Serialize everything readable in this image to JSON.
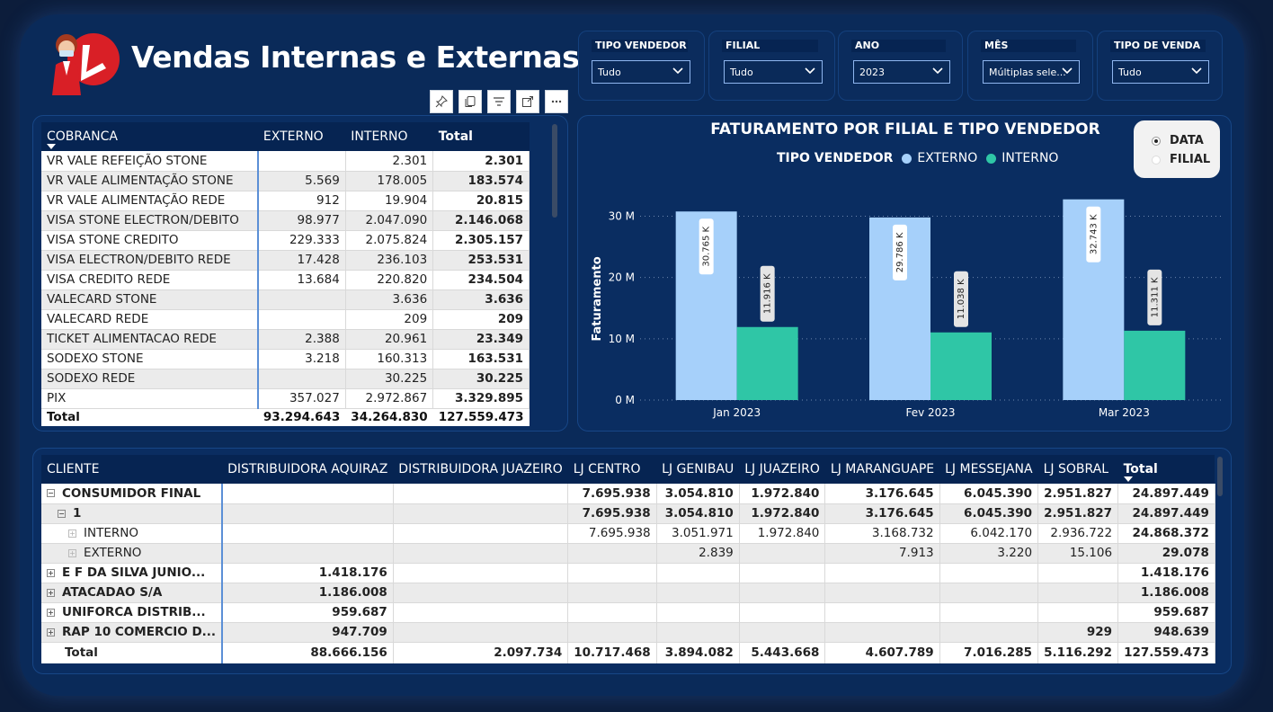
{
  "header": {
    "title": "Vendas Internas e Externas"
  },
  "filters": [
    {
      "label": "TIPO VENDEDOR",
      "value": "Tudo"
    },
    {
      "label": "FILIAL",
      "value": "Tudo"
    },
    {
      "label": "ANO",
      "value": "2023"
    },
    {
      "label": "MÊS",
      "value": "Múltiplas sele..."
    },
    {
      "label": "TIPO DE VENDA",
      "value": "Tudo"
    }
  ],
  "toolbar": {
    "icons": [
      "pin-icon",
      "copy-icon",
      "filter-icon",
      "focus-mode-icon",
      "more-options-icon"
    ]
  },
  "cobranca_table": {
    "headers": [
      "COBRANCA",
      "EXTERNO",
      "INTERNO",
      "Total"
    ],
    "rows": [
      [
        "VR VALE REFEIÇÃO STONE",
        "",
        "2.301",
        "2.301"
      ],
      [
        "VR VALE ALIMENTAÇÃO STONE",
        "5.569",
        "178.005",
        "183.574"
      ],
      [
        "VR VALE ALIMENTAÇÃO REDE",
        "912",
        "19.904",
        "20.815"
      ],
      [
        "VISA STONE ELECTRON/DEBITO",
        "98.977",
        "2.047.090",
        "2.146.068"
      ],
      [
        "VISA STONE CREDITO",
        "229.333",
        "2.075.824",
        "2.305.157"
      ],
      [
        "VISA ELECTRON/DEBITO REDE",
        "17.428",
        "236.103",
        "253.531"
      ],
      [
        "VISA CREDITO REDE",
        "13.684",
        "220.820",
        "234.504"
      ],
      [
        "VALECARD STONE",
        "",
        "3.636",
        "3.636"
      ],
      [
        "VALECARD REDE",
        "",
        "209",
        "209"
      ],
      [
        "TICKET ALIMENTACAO REDE",
        "2.388",
        "20.961",
        "23.349"
      ],
      [
        "SODEXO STONE",
        "3.218",
        "160.313",
        "163.531"
      ],
      [
        "SODEXO REDE",
        "",
        "30.225",
        "30.225"
      ],
      [
        "PIX",
        "357.027",
        "2.972.867",
        "3.329.895"
      ]
    ],
    "total": [
      "Total",
      "93.294.643",
      "34.264.830",
      "127.559.473"
    ]
  },
  "chart_panel": {
    "title": "FATURAMENTO POR FILIAL E TIPO VENDEDOR",
    "legend_title": "TIPO VENDEDOR",
    "view_toggle": [
      {
        "label": "DATA",
        "selected": true
      },
      {
        "label": "FILIAL",
        "selected": false
      }
    ]
  },
  "chart_data": {
    "type": "bar",
    "title": "FATURAMENTO POR FILIAL E TIPO VENDEDOR",
    "ylabel": "Faturamento",
    "xlabel": "",
    "categories": [
      "Jan 2023",
      "Fev 2023",
      "Mar 2023"
    ],
    "series": [
      {
        "name": "EXTERNO",
        "values": [
          30765,
          29786,
          32743
        ],
        "labels": [
          "30.765 K",
          "29.786 K",
          "32.743 K"
        ],
        "color": "#a6d0fa"
      },
      {
        "name": "INTERNO",
        "values": [
          11916,
          11038,
          11311
        ],
        "labels": [
          "11.916 K",
          "11.038 K",
          "11.311 K"
        ],
        "color": "#2fc6a6"
      }
    ],
    "ylim": [
      0,
      33000
    ],
    "yticks": [
      0,
      10000,
      20000,
      30000
    ],
    "ytick_labels": [
      "0 M",
      "10 M",
      "20 M",
      "30 M"
    ],
    "grid": true,
    "legend_position": "top"
  },
  "cliente_table": {
    "headers": [
      "CLIENTE",
      "DISTRIBUIDORA AQUIRAZ",
      "DISTRIBUIDORA JUAZEIRO",
      "LJ CENTRO",
      "LJ GENIBAU",
      "LJ JUAZEIRO",
      "LJ MARANGUAPE",
      "LJ MESSEJANA",
      "LJ SOBRAL",
      "Total"
    ],
    "rows": [
      {
        "level": 0,
        "expander": "minus",
        "bold": true,
        "cells": [
          "CONSUMIDOR FINAL",
          "",
          "",
          "7.695.938",
          "3.054.810",
          "1.972.840",
          "3.176.645",
          "6.045.390",
          "2.951.827",
          "24.897.449"
        ]
      },
      {
        "level": 1,
        "expander": "minus",
        "bold": true,
        "cells": [
          "1",
          "",
          "",
          "7.695.938",
          "3.054.810",
          "1.972.840",
          "3.176.645",
          "6.045.390",
          "2.951.827",
          "24.897.449"
        ]
      },
      {
        "level": 2,
        "expander": "plus-light",
        "bold": false,
        "cells": [
          "INTERNO",
          "",
          "",
          "7.695.938",
          "3.051.971",
          "1.972.840",
          "3.168.732",
          "6.042.170",
          "2.936.722",
          "24.868.372"
        ]
      },
      {
        "level": 2,
        "expander": "plus-light",
        "bold": false,
        "cells": [
          "EXTERNO",
          "",
          "",
          "",
          "2.839",
          "",
          "7.913",
          "3.220",
          "15.106",
          "29.078"
        ]
      },
      {
        "level": 0,
        "expander": "plus",
        "bold": true,
        "cells": [
          "E F DA SILVA JUNIO...",
          "1.418.176",
          "",
          "",
          "",
          "",
          "",
          "",
          "",
          "1.418.176"
        ]
      },
      {
        "level": 0,
        "expander": "plus",
        "bold": true,
        "cells": [
          "ATACADAO S/A",
          "1.186.008",
          "",
          "",
          "",
          "",
          "",
          "",
          "",
          "1.186.008"
        ]
      },
      {
        "level": 0,
        "expander": "plus",
        "bold": true,
        "cells": [
          "UNIFORCA DISTRIB...",
          "959.687",
          "",
          "",
          "",
          "",
          "",
          "",
          "",
          "959.687"
        ]
      },
      {
        "level": 0,
        "expander": "plus",
        "bold": true,
        "cells": [
          "RAP 10 COMERCIO D...",
          "947.709",
          "",
          "",
          "",
          "",
          "",
          "",
          "929",
          "948.639"
        ]
      }
    ],
    "total": [
      "Total",
      "88.666.156",
      "2.097.734",
      "10.717.468",
      "3.894.082",
      "5.443.668",
      "4.607.789",
      "7.016.285",
      "5.116.292",
      "127.559.473"
    ]
  }
}
